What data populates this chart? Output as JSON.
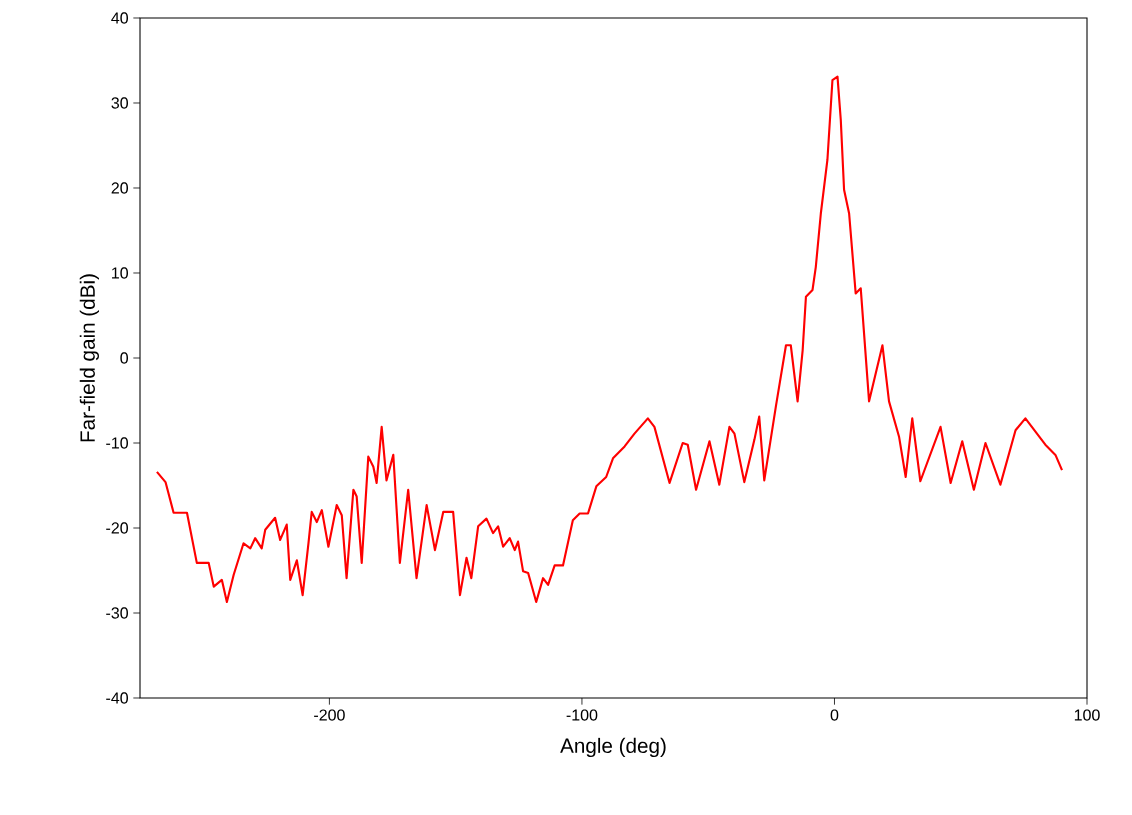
{
  "chart_data": {
    "type": "line",
    "xlabel": "Angle (deg)",
    "ylabel": "Far-field gain (dBi)",
    "xlim": [
      -275,
      100
    ],
    "ylim": [
      -40,
      40
    ],
    "xticks": [
      -200,
      -100,
      0,
      100
    ],
    "yticks": [
      -40,
      -30,
      -20,
      -10,
      0,
      10,
      20,
      30,
      40
    ],
    "grid": false,
    "marker": "none",
    "line_style": "solid",
    "series": [
      {
        "color": "#ff0000",
        "x": [
          -268.3,
          -264.9,
          -261.7,
          -256.4,
          -252.5,
          -247.8,
          -245.8,
          -242.6,
          -240.6,
          -237.9,
          -234.0,
          -231.3,
          -229.4,
          -226.8,
          -225.4,
          -221.5,
          -219.5,
          -216.9,
          -215.5,
          -212.9,
          -210.6,
          -208.3,
          -207.0,
          -205.0,
          -203.0,
          -200.4,
          -197.1,
          -195.1,
          -193.2,
          -190.5,
          -189.2,
          -187.2,
          -184.6,
          -182.6,
          -181.3,
          -179.3,
          -177.4,
          -174.7,
          -172.1,
          -168.8,
          -165.5,
          -161.5,
          -158.2,
          -154.9,
          -151.0,
          -148.3,
          -145.7,
          -143.8,
          -141.1,
          -137.8,
          -135.2,
          -133.2,
          -131.2,
          -128.6,
          -126.6,
          -125.3,
          -123.3,
          -121.3,
          -118.1,
          -115.4,
          -113.4,
          -110.8,
          -107.5,
          -103.6,
          -100.9,
          -97.6,
          -94.3,
          -90.4,
          -87.7,
          -83.1,
          -79.2,
          -73.9,
          -71.3,
          -65.3,
          -60.1,
          -58.1,
          -54.8,
          -49.5,
          -45.6,
          -41.6,
          -39.6,
          -35.7,
          -31.7,
          -29.8,
          -27.8,
          -23.2,
          -19.2,
          -17.3,
          -14.6,
          -12.6,
          -11.3,
          -8.7,
          -7.4,
          -5.4,
          -2.8,
          -0.8,
          1.2,
          2.5,
          3.8,
          5.8,
          8.4,
          10.4,
          13.7,
          19.0,
          21.6,
          25.6,
          28.2,
          30.8,
          34.0,
          42.0,
          46.0,
          50.6,
          55.2,
          59.8,
          65.7,
          71.7,
          75.6,
          83.5,
          87.5,
          90.1
        ],
        "values": [
          -13.4,
          -14.6,
          -18.2,
          -18.2,
          -24.1,
          -24.1,
          -26.9,
          -26.1,
          -28.7,
          -25.5,
          -21.8,
          -22.4,
          -21.2,
          -22.4,
          -20.2,
          -18.8,
          -21.4,
          -19.6,
          -26.1,
          -23.8,
          -27.9,
          -21.8,
          -18.1,
          -19.3,
          -17.9,
          -22.2,
          -17.3,
          -18.5,
          -25.9,
          -15.5,
          -16.3,
          -24.1,
          -11.6,
          -12.8,
          -14.7,
          -8.1,
          -14.4,
          -11.4,
          -24.1,
          -15.5,
          -25.9,
          -17.3,
          -22.6,
          -18.1,
          -18.1,
          -27.9,
          -23.5,
          -25.9,
          -19.8,
          -18.9,
          -20.6,
          -19.8,
          -22.2,
          -21.2,
          -22.6,
          -21.6,
          -25.1,
          -25.3,
          -28.7,
          -25.9,
          -26.7,
          -24.4,
          -24.4,
          -19.1,
          -18.3,
          -18.3,
          -15.1,
          -14.0,
          -11.8,
          -10.4,
          -8.9,
          -7.1,
          -8.1,
          -14.7,
          -10.0,
          -10.2,
          -15.5,
          -9.8,
          -14.9,
          -8.1,
          -8.9,
          -14.6,
          -9.6,
          -6.9,
          -14.4,
          -5.7,
          1.5,
          1.5,
          -5.1,
          0.9,
          7.2,
          8.0,
          10.7,
          17.0,
          23.3,
          32.7,
          33.1,
          28.0,
          19.8,
          17.0,
          7.6,
          8.2,
          -5.1,
          1.5,
          -5.1,
          -9.3,
          -14.0,
          -7.1,
          -14.5,
          -8.1,
          -14.7,
          -9.8,
          -15.5,
          -10.0,
          -14.9,
          -8.5,
          -7.1,
          -10.2,
          -11.4,
          -13.2
        ]
      }
    ]
  }
}
